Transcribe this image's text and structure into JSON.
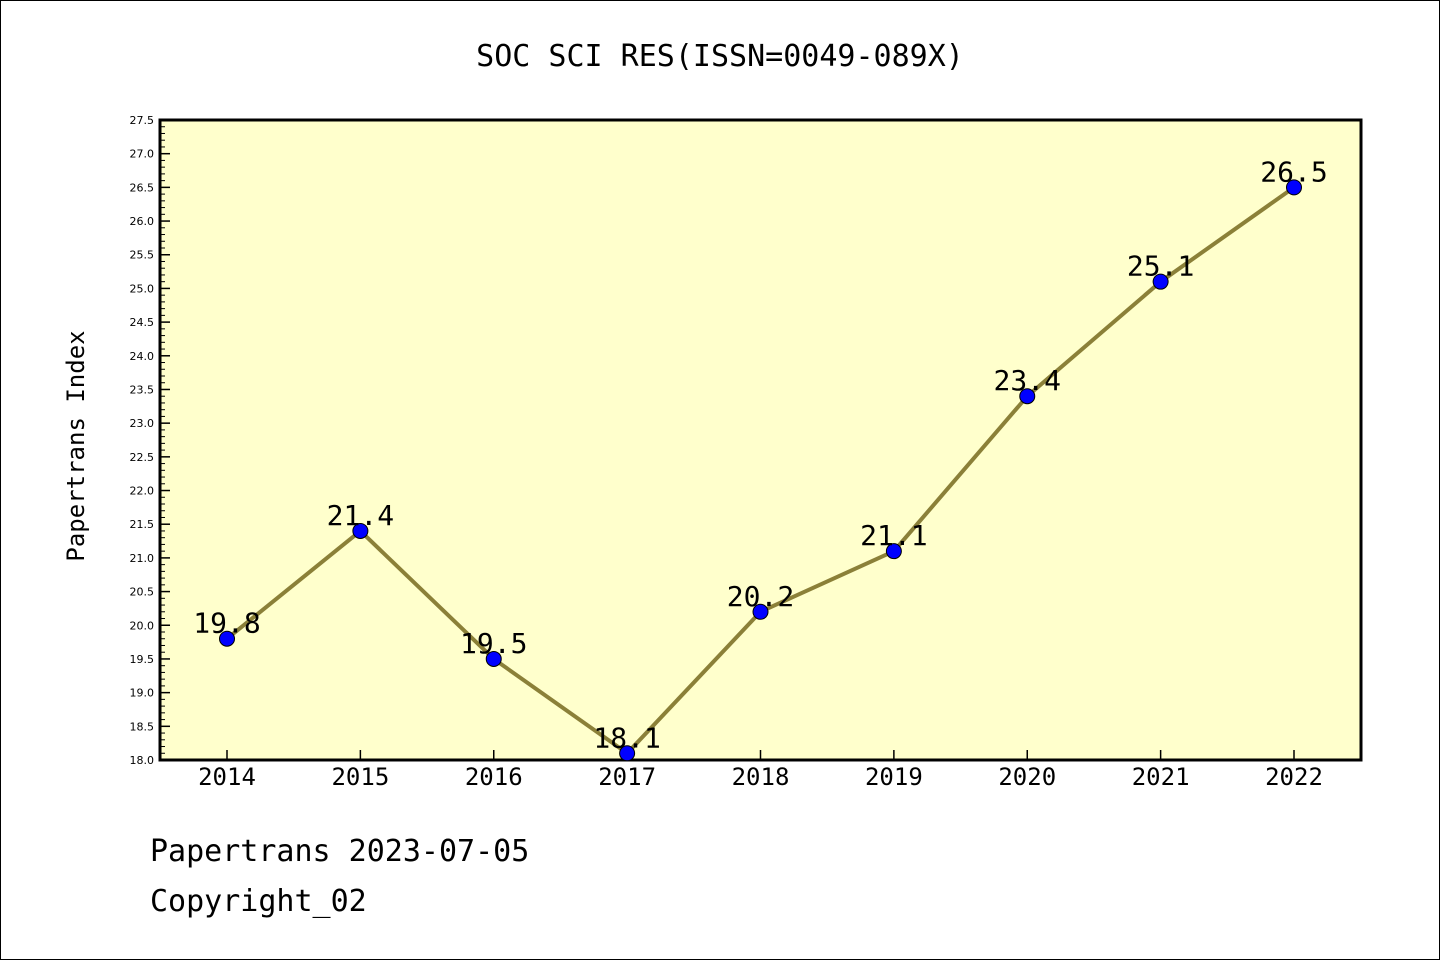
{
  "chart_data": {
    "type": "line",
    "title": "SOC SCI RES(ISSN=0049-089X)",
    "xlabel": "",
    "ylabel": "Papertrans Index",
    "categories": [
      "2014",
      "2015",
      "2016",
      "2017",
      "2018",
      "2019",
      "2020",
      "2021",
      "2022"
    ],
    "series": [
      {
        "values": [
          19.8,
          21.4,
          19.5,
          18.1,
          20.2,
          21.1,
          23.4,
          25.1,
          26.5
        ],
        "data_labels": [
          "19.8",
          "21.4",
          "19.5",
          "18.1",
          "20.2",
          "21.1",
          "23.4",
          "25.1",
          "26.5"
        ]
      }
    ],
    "ylim": [
      18.0,
      27.5
    ],
    "y_ticks": [
      "18.0",
      "18.5",
      "19.0",
      "19.5",
      "20.0",
      "20.5",
      "21.0",
      "21.5",
      "22.0",
      "22.5",
      "23.0",
      "23.5",
      "24.0",
      "24.5",
      "25.0",
      "25.5",
      "26.0",
      "26.5",
      "27.0",
      "27.5"
    ],
    "grid": false,
    "legend": "none",
    "colors": {
      "plot_background": "#ffffcc",
      "line": "#8b8038",
      "marker": "#0000ff"
    }
  },
  "footer": {
    "line1": "Papertrans 2023-07-05",
    "line2": "Copyright_02"
  }
}
